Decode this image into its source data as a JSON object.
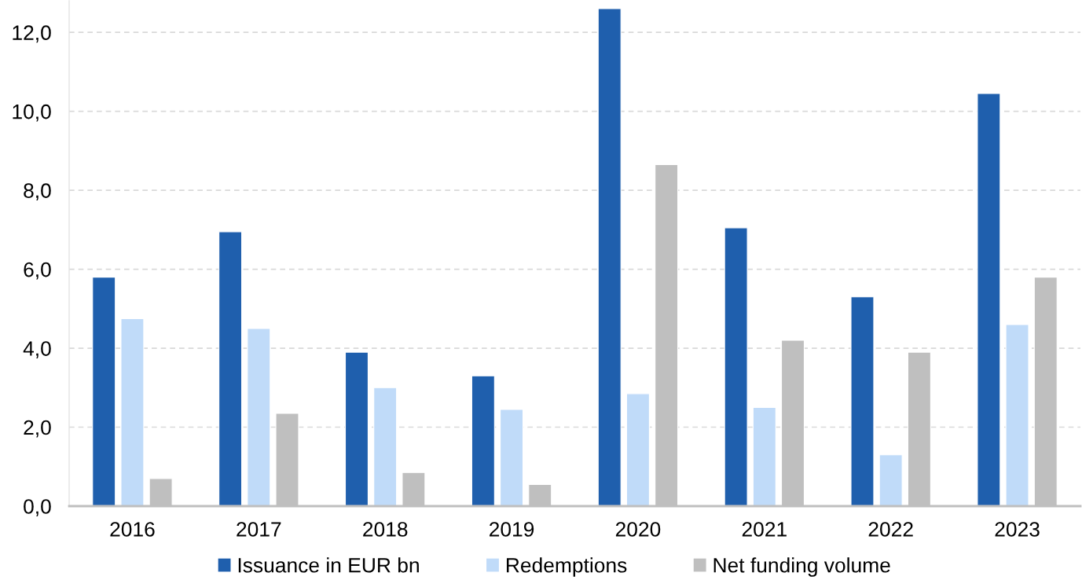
{
  "chart_data": {
    "type": "bar",
    "categories": [
      "2016",
      "2017",
      "2018",
      "2019",
      "2020",
      "2021",
      "2022",
      "2023"
    ],
    "series": [
      {
        "name": "Issuance in EUR bn",
        "color": "#1f5fad",
        "values": [
          5.8,
          6.95,
          3.9,
          3.3,
          12.6,
          7.05,
          5.3,
          10.45
        ]
      },
      {
        "name": "Redemptions",
        "color": "#c0dbf9",
        "values": [
          4.75,
          4.5,
          3.0,
          2.45,
          2.85,
          2.5,
          1.3,
          4.6
        ]
      },
      {
        "name": "Net funding volume",
        "color": "#bfbfbf",
        "values": [
          0.7,
          2.35,
          0.85,
          0.55,
          8.65,
          4.2,
          3.9,
          5.8
        ]
      }
    ],
    "ylim": [
      0,
      12.8
    ],
    "yticks": [
      {
        "value": 0,
        "label": "0,0"
      },
      {
        "value": 2,
        "label": "2,0"
      },
      {
        "value": 4,
        "label": "4,0"
      },
      {
        "value": 6,
        "label": "6,0"
      },
      {
        "value": 8,
        "label": "8,0"
      },
      {
        "value": 10,
        "label": "10,0"
      },
      {
        "value": 12,
        "label": "12,0"
      }
    ],
    "grid": "y",
    "legend": "bottom"
  }
}
